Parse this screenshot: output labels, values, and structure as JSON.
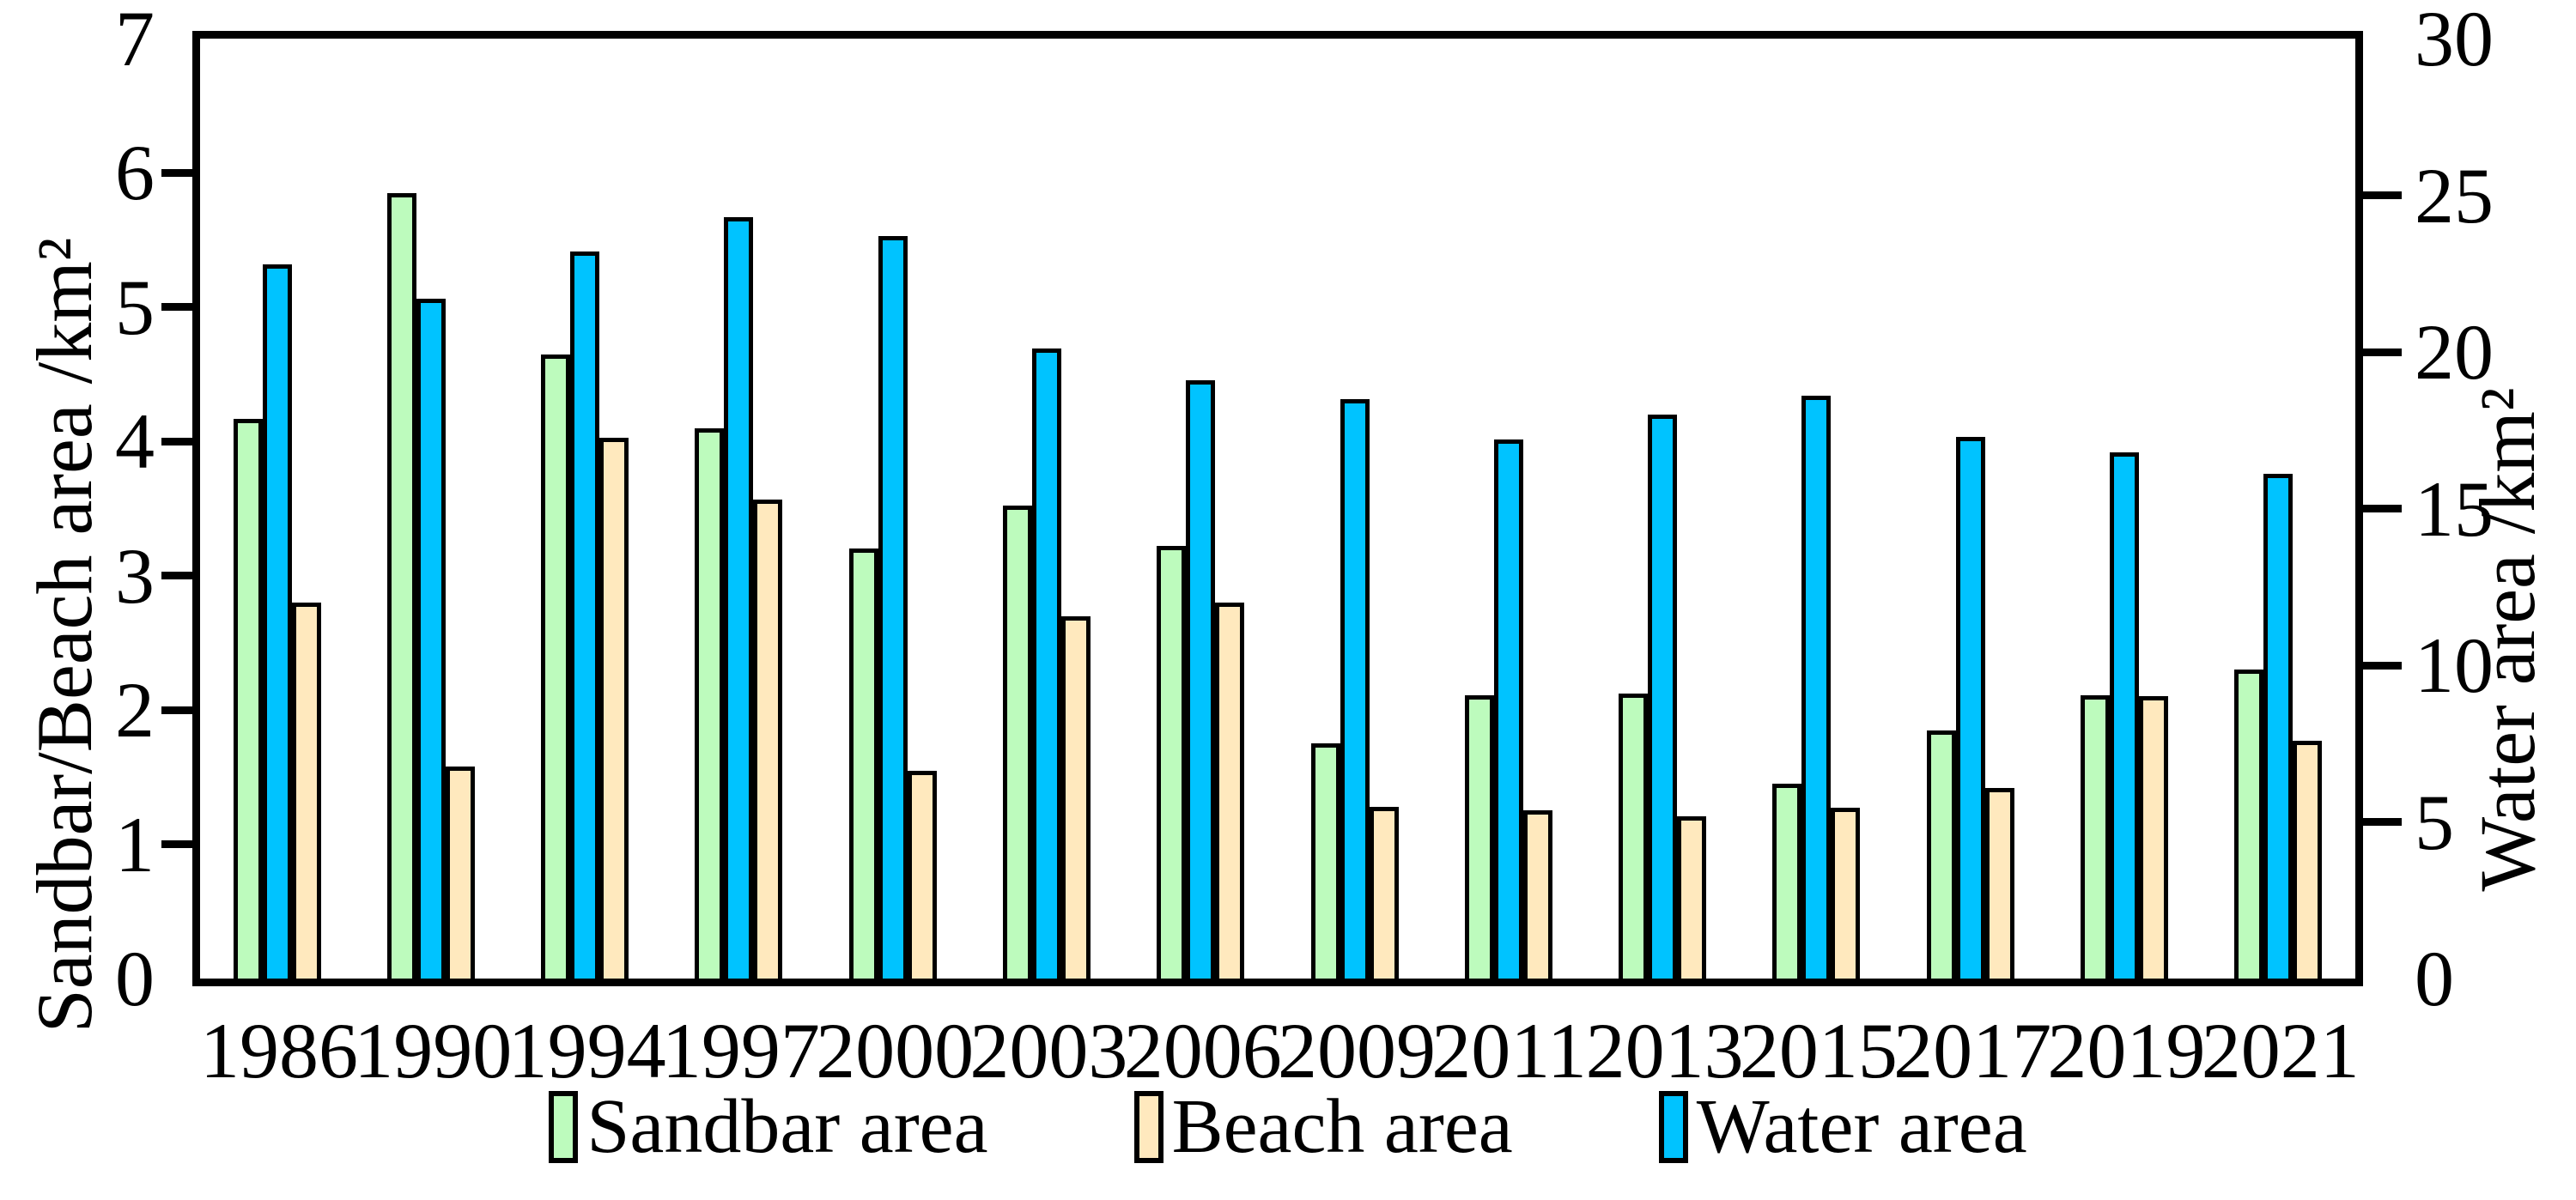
{
  "chart_data": {
    "type": "bar",
    "title": "",
    "categories": [
      "1986",
      "1990",
      "1994",
      "1997",
      "2000",
      "2003",
      "2006",
      "2009",
      "2011",
      "2013",
      "2015",
      "2017",
      "2019",
      "2021"
    ],
    "series": [
      {
        "name": "Sandbar area",
        "axis": "left",
        "color": "#bdfbbd",
        "values": [
          4.17,
          5.85,
          4.65,
          4.1,
          3.2,
          3.52,
          3.22,
          1.75,
          2.11,
          2.12,
          1.45,
          1.85,
          2.11,
          2.3
        ]
      },
      {
        "name": "Beach area",
        "axis": "left",
        "color": "#ffe9be",
        "values": [
          2.8,
          1.58,
          4.03,
          3.57,
          1.55,
          2.7,
          2.8,
          1.28,
          1.25,
          1.21,
          1.27,
          1.42,
          2.1,
          1.77
        ]
      },
      {
        "name": "Water area",
        "axis": "right",
        "color": "#00c3ff",
        "values": [
          22.8,
          21.7,
          23.2,
          24.3,
          23.7,
          20.1,
          19.1,
          18.5,
          17.2,
          18.0,
          18.6,
          17.3,
          16.8,
          16.1
        ]
      }
    ],
    "bar_order_in_group": [
      "Sandbar area",
      "Water area",
      "Beach area"
    ],
    "left_axis": {
      "label": "Sandbar/Beach area /km²",
      "min": 0,
      "max": 7,
      "tick_step": 1,
      "ticks": [
        0,
        1,
        2,
        3,
        4,
        5,
        6,
        7
      ]
    },
    "right_axis": {
      "label": "Water area /km²",
      "min": 0,
      "max": 30,
      "tick_step": 5,
      "ticks": [
        0,
        5,
        10,
        15,
        20,
        25,
        30
      ]
    },
    "grid": false,
    "legend_position": "bottom",
    "legend": [
      {
        "label": "Sandbar area",
        "color": "#bdfbbd"
      },
      {
        "label": "Beach area",
        "color": "#ffe9be"
      },
      {
        "label": "Water area",
        "color": "#00c3ff"
      }
    ],
    "bar_outline_color": "#000000",
    "axis_color": "#000000",
    "background_color": "#ffffff"
  }
}
